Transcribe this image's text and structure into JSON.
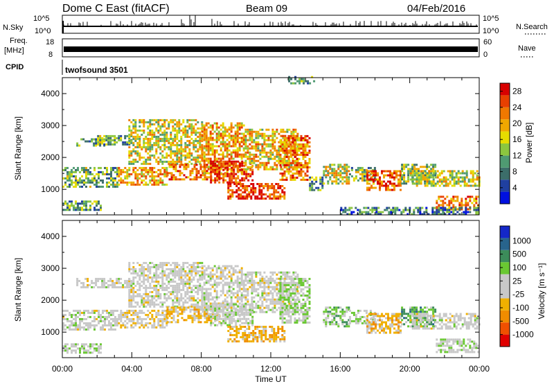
{
  "header": {
    "station": "Dome C East (fitACF)",
    "beam": "Beam 09",
    "date": "04/Feb/2016"
  },
  "top_panels": {
    "nsky_label": "N.Sky",
    "nsky_ticks": [
      "10^5",
      "10^0"
    ],
    "nsearch_label": "N.Search",
    "freq_label": "Freq.",
    "freq_unit": "[MHz]",
    "freq_ticks": [
      "18",
      "8"
    ],
    "nave_label": "Nave",
    "nave_ticks": [
      "60",
      "0"
    ],
    "cpid_label": "CPID",
    "cpid_value": "twofsound 3501"
  },
  "colors": {
    "power": [
      "#0010e0",
      "#2040a0",
      "#3c6e6a",
      "#4f9a72",
      "#8cc63f",
      "#e6dc00",
      "#f0a800",
      "#f07800",
      "#e84000",
      "#d80000"
    ],
    "velocity": [
      "#e00000",
      "#f05000",
      "#f08c00",
      "#f0b000",
      "#c8c8c8",
      "#c8c8c8",
      "#6ac832",
      "#3c8c5a",
      "#28648c",
      "#1428c8"
    ]
  },
  "chart_data": [
    {
      "type": "heatmap",
      "panel": "power",
      "ylabel": "Slant Range [km]",
      "ylim": [
        200,
        4500
      ],
      "yticks": [
        "1000",
        "2000",
        "3000",
        "4000"
      ],
      "xlim_hours": [
        0,
        24
      ],
      "colorbar": {
        "label": "Power [dB]",
        "ticks": [
          "4",
          "8",
          "12",
          "16",
          "20",
          "24",
          "28"
        ],
        "range": [
          0,
          30
        ]
      },
      "regions": [
        {
          "t": [
            0.0,
            3.2
          ],
          "r": [
            1050,
            1700
          ],
          "v": 12
        },
        {
          "t": [
            0.0,
            2.2
          ],
          "r": [
            350,
            650
          ],
          "v": 10
        },
        {
          "t": [
            0.8,
            2.4
          ],
          "r": [
            2400,
            2600
          ],
          "v": 10
        },
        {
          "t": [
            2.0,
            4.0
          ],
          "r": [
            2400,
            2700
          ],
          "v": 12
        },
        {
          "t": [
            3.2,
            6.0
          ],
          "r": [
            1150,
            1700
          ],
          "v": 20
        },
        {
          "t": [
            3.8,
            8.0
          ],
          "r": [
            1800,
            3200
          ],
          "v": 16
        },
        {
          "t": [
            6.0,
            9.0
          ],
          "r": [
            1300,
            1800
          ],
          "v": 22
        },
        {
          "t": [
            8.0,
            10.5
          ],
          "r": [
            1500,
            3100
          ],
          "v": 20
        },
        {
          "t": [
            8.5,
            11.0
          ],
          "r": [
            1200,
            1900
          ],
          "v": 26
        },
        {
          "t": [
            9.5,
            12.8
          ],
          "r": [
            700,
            1200
          ],
          "v": 26
        },
        {
          "t": [
            10.5,
            13.5
          ],
          "r": [
            1600,
            2900
          ],
          "v": 18
        },
        {
          "t": [
            12.5,
            14.2
          ],
          "r": [
            1300,
            2700
          ],
          "v": 22
        },
        {
          "t": [
            13.0,
            14.5
          ],
          "r": [
            4300,
            4550
          ],
          "v": 10
        },
        {
          "t": [
            14.2,
            15.0
          ],
          "r": [
            1000,
            1400
          ],
          "v": 10
        },
        {
          "t": [
            15.0,
            16.5
          ],
          "r": [
            1200,
            1800
          ],
          "v": 16
        },
        {
          "t": [
            16.5,
            18.0
          ],
          "r": [
            1300,
            1700
          ],
          "v": 12
        },
        {
          "t": [
            17.5,
            19.5
          ],
          "r": [
            1000,
            1600
          ],
          "v": 24
        },
        {
          "t": [
            19.5,
            21.5
          ],
          "r": [
            1200,
            1800
          ],
          "v": 14
        },
        {
          "t": [
            20.0,
            24.0
          ],
          "r": [
            1100,
            1600
          ],
          "v": 16
        },
        {
          "t": [
            21.5,
            24.0
          ],
          "r": [
            350,
            800
          ],
          "v": 22
        },
        {
          "t": [
            16.0,
            24.0
          ],
          "r": [
            250,
            450
          ],
          "v": 8
        }
      ]
    },
    {
      "type": "heatmap",
      "panel": "velocity",
      "ylabel": "Slant Range [km]",
      "ylim": [
        200,
        4500
      ],
      "yticks": [
        "1000",
        "2000",
        "3000",
        "4000"
      ],
      "xlabel": "Time UT",
      "xticks": [
        "00:00",
        "04:00",
        "08:00",
        "12:00",
        "16:00",
        "20:00",
        "00:00"
      ],
      "xlim_hours": [
        0,
        24
      ],
      "colorbar": {
        "label": "Velocity [m s⁻¹]",
        "ticks": [
          "1000",
          "500",
          "100",
          "25",
          "-25",
          "-100",
          "-500",
          "-1000"
        ],
        "range": [
          -1250,
          1250
        ]
      },
      "regions": [
        {
          "t": [
            0.0,
            3.2
          ],
          "r": [
            1050,
            1700
          ],
          "v": 20
        },
        {
          "t": [
            0.0,
            2.2
          ],
          "r": [
            350,
            650
          ],
          "v": 150
        },
        {
          "t": [
            0.8,
            4.0
          ],
          "r": [
            2400,
            2700
          ],
          "v": 0
        },
        {
          "t": [
            3.2,
            6.0
          ],
          "r": [
            1150,
            1700
          ],
          "v": -150
        },
        {
          "t": [
            3.8,
            8.0
          ],
          "r": [
            1800,
            3200
          ],
          "v": 0
        },
        {
          "t": [
            6.0,
            9.0
          ],
          "r": [
            1300,
            1800
          ],
          "v": -300
        },
        {
          "t": [
            8.0,
            10.5
          ],
          "r": [
            1500,
            3100
          ],
          "v": 0
        },
        {
          "t": [
            8.5,
            11.0
          ],
          "r": [
            1200,
            1900
          ],
          "v": 120
        },
        {
          "t": [
            9.5,
            12.8
          ],
          "r": [
            700,
            1200
          ],
          "v": -400
        },
        {
          "t": [
            10.5,
            13.5
          ],
          "r": [
            1600,
            2900
          ],
          "v": 0
        },
        {
          "t": [
            12.5,
            14.2
          ],
          "r": [
            1300,
            2700
          ],
          "v": 200
        },
        {
          "t": [
            15.0,
            16.5
          ],
          "r": [
            1200,
            1800
          ],
          "v": 400
        },
        {
          "t": [
            16.5,
            18.0
          ],
          "r": [
            1300,
            1700
          ],
          "v": 150
        },
        {
          "t": [
            17.5,
            19.5
          ],
          "r": [
            1000,
            1600
          ],
          "v": -300
        },
        {
          "t": [
            19.5,
            21.5
          ],
          "r": [
            1200,
            1800
          ],
          "v": 500
        },
        {
          "t": [
            20.0,
            24.0
          ],
          "r": [
            1100,
            1600
          ],
          "v": 0
        },
        {
          "t": [
            21.5,
            24.0
          ],
          "r": [
            350,
            800
          ],
          "v": 120
        }
      ]
    }
  ]
}
